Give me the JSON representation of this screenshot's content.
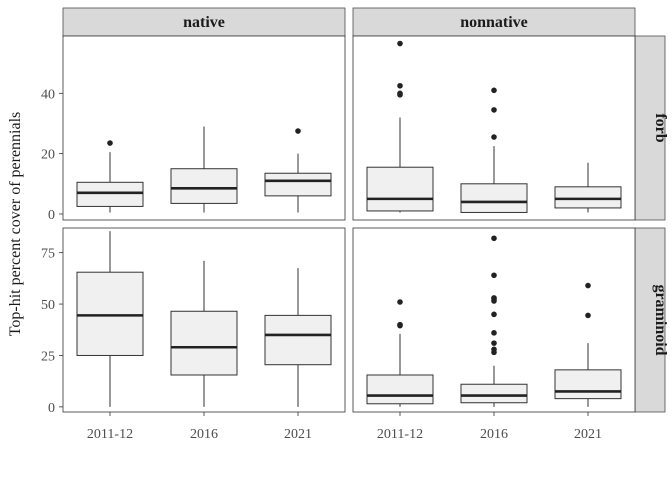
{
  "chart_data": {
    "type": "boxplot",
    "ylabel": "Top-hit percent cover of perennials",
    "xlabel": "",
    "categories": [
      "2011-12",
      "2016",
      "2021"
    ],
    "column_facets": [
      "native",
      "nonnative"
    ],
    "row_facets": [
      "forb",
      "graminoid"
    ],
    "panels": [
      {
        "col": "native",
        "row": "forb",
        "ylim": [
          -2,
          59
        ],
        "yticks": [
          0,
          20,
          40
        ],
        "boxes": [
          {
            "category": "2011-12",
            "whisker_low": 0.5,
            "q1": 2.5,
            "median": 7,
            "q3": 10.5,
            "whisker_high": 20.5,
            "outliers": [
              23.5
            ]
          },
          {
            "category": "2016",
            "whisker_low": 0.5,
            "q1": 3.5,
            "median": 8.5,
            "q3": 15,
            "whisker_high": 29,
            "outliers": []
          },
          {
            "category": "2021",
            "whisker_low": 0.5,
            "q1": 6,
            "median": 11,
            "q3": 13.5,
            "whisker_high": 20,
            "outliers": [
              27.5
            ]
          }
        ]
      },
      {
        "col": "nonnative",
        "row": "forb",
        "ylim": [
          -2,
          59
        ],
        "yticks": [
          0,
          20,
          40
        ],
        "boxes": [
          {
            "category": "2011-12",
            "whisker_low": 0.5,
            "q1": 1,
            "median": 5,
            "q3": 15.5,
            "whisker_high": 32,
            "outliers": [
              39.5,
              40,
              42.5,
              56.5
            ]
          },
          {
            "category": "2016",
            "whisker_low": 0.5,
            "q1": 0.5,
            "median": 4,
            "q3": 10,
            "whisker_high": 22.5,
            "outliers": [
              25.5,
              34.5,
              41
            ]
          },
          {
            "category": "2021",
            "whisker_low": 0.5,
            "q1": 2,
            "median": 5,
            "q3": 9,
            "whisker_high": 17,
            "outliers": []
          }
        ]
      },
      {
        "col": "native",
        "row": "graminoid",
        "ylim": [
          -2.5,
          87
        ],
        "yticks": [
          0,
          25,
          50,
          75
        ],
        "boxes": [
          {
            "category": "2011-12",
            "whisker_low": 0,
            "q1": 25,
            "median": 44.5,
            "q3": 65.5,
            "whisker_high": 85.5,
            "outliers": []
          },
          {
            "category": "2016",
            "whisker_low": 0,
            "q1": 15.5,
            "median": 29,
            "q3": 46.5,
            "whisker_high": 71,
            "outliers": []
          },
          {
            "category": "2021",
            "whisker_low": 0,
            "q1": 20.5,
            "median": 35,
            "q3": 44.5,
            "whisker_high": 67.5,
            "outliers": []
          }
        ]
      },
      {
        "col": "nonnative",
        "row": "graminoid",
        "ylim": [
          -2.5,
          87
        ],
        "yticks": [
          0,
          25,
          50,
          75
        ],
        "boxes": [
          {
            "category": "2011-12",
            "whisker_low": 0,
            "q1": 1.5,
            "median": 5.5,
            "q3": 15.5,
            "whisker_high": 35.5,
            "outliers": [
              39.5,
              40,
              51
            ]
          },
          {
            "category": "2016",
            "whisker_low": 0,
            "q1": 2,
            "median": 5.5,
            "q3": 11,
            "whisker_high": 20,
            "outliers": [
              26.5,
              28,
              31,
              36,
              45,
              51.5,
              52.5,
              53,
              64,
              82
            ]
          },
          {
            "category": "2021",
            "whisker_low": 0,
            "q1": 4,
            "median": 7.5,
            "q3": 18,
            "whisker_high": 31,
            "outliers": [
              44.5,
              59
            ]
          }
        ]
      }
    ],
    "colors": {
      "box_fill": "#f0f0f0",
      "line": "#333333",
      "strip_fill": "#d9d9d9",
      "strip_border": "#4d4d4d"
    },
    "grid": false,
    "legend": "none"
  }
}
